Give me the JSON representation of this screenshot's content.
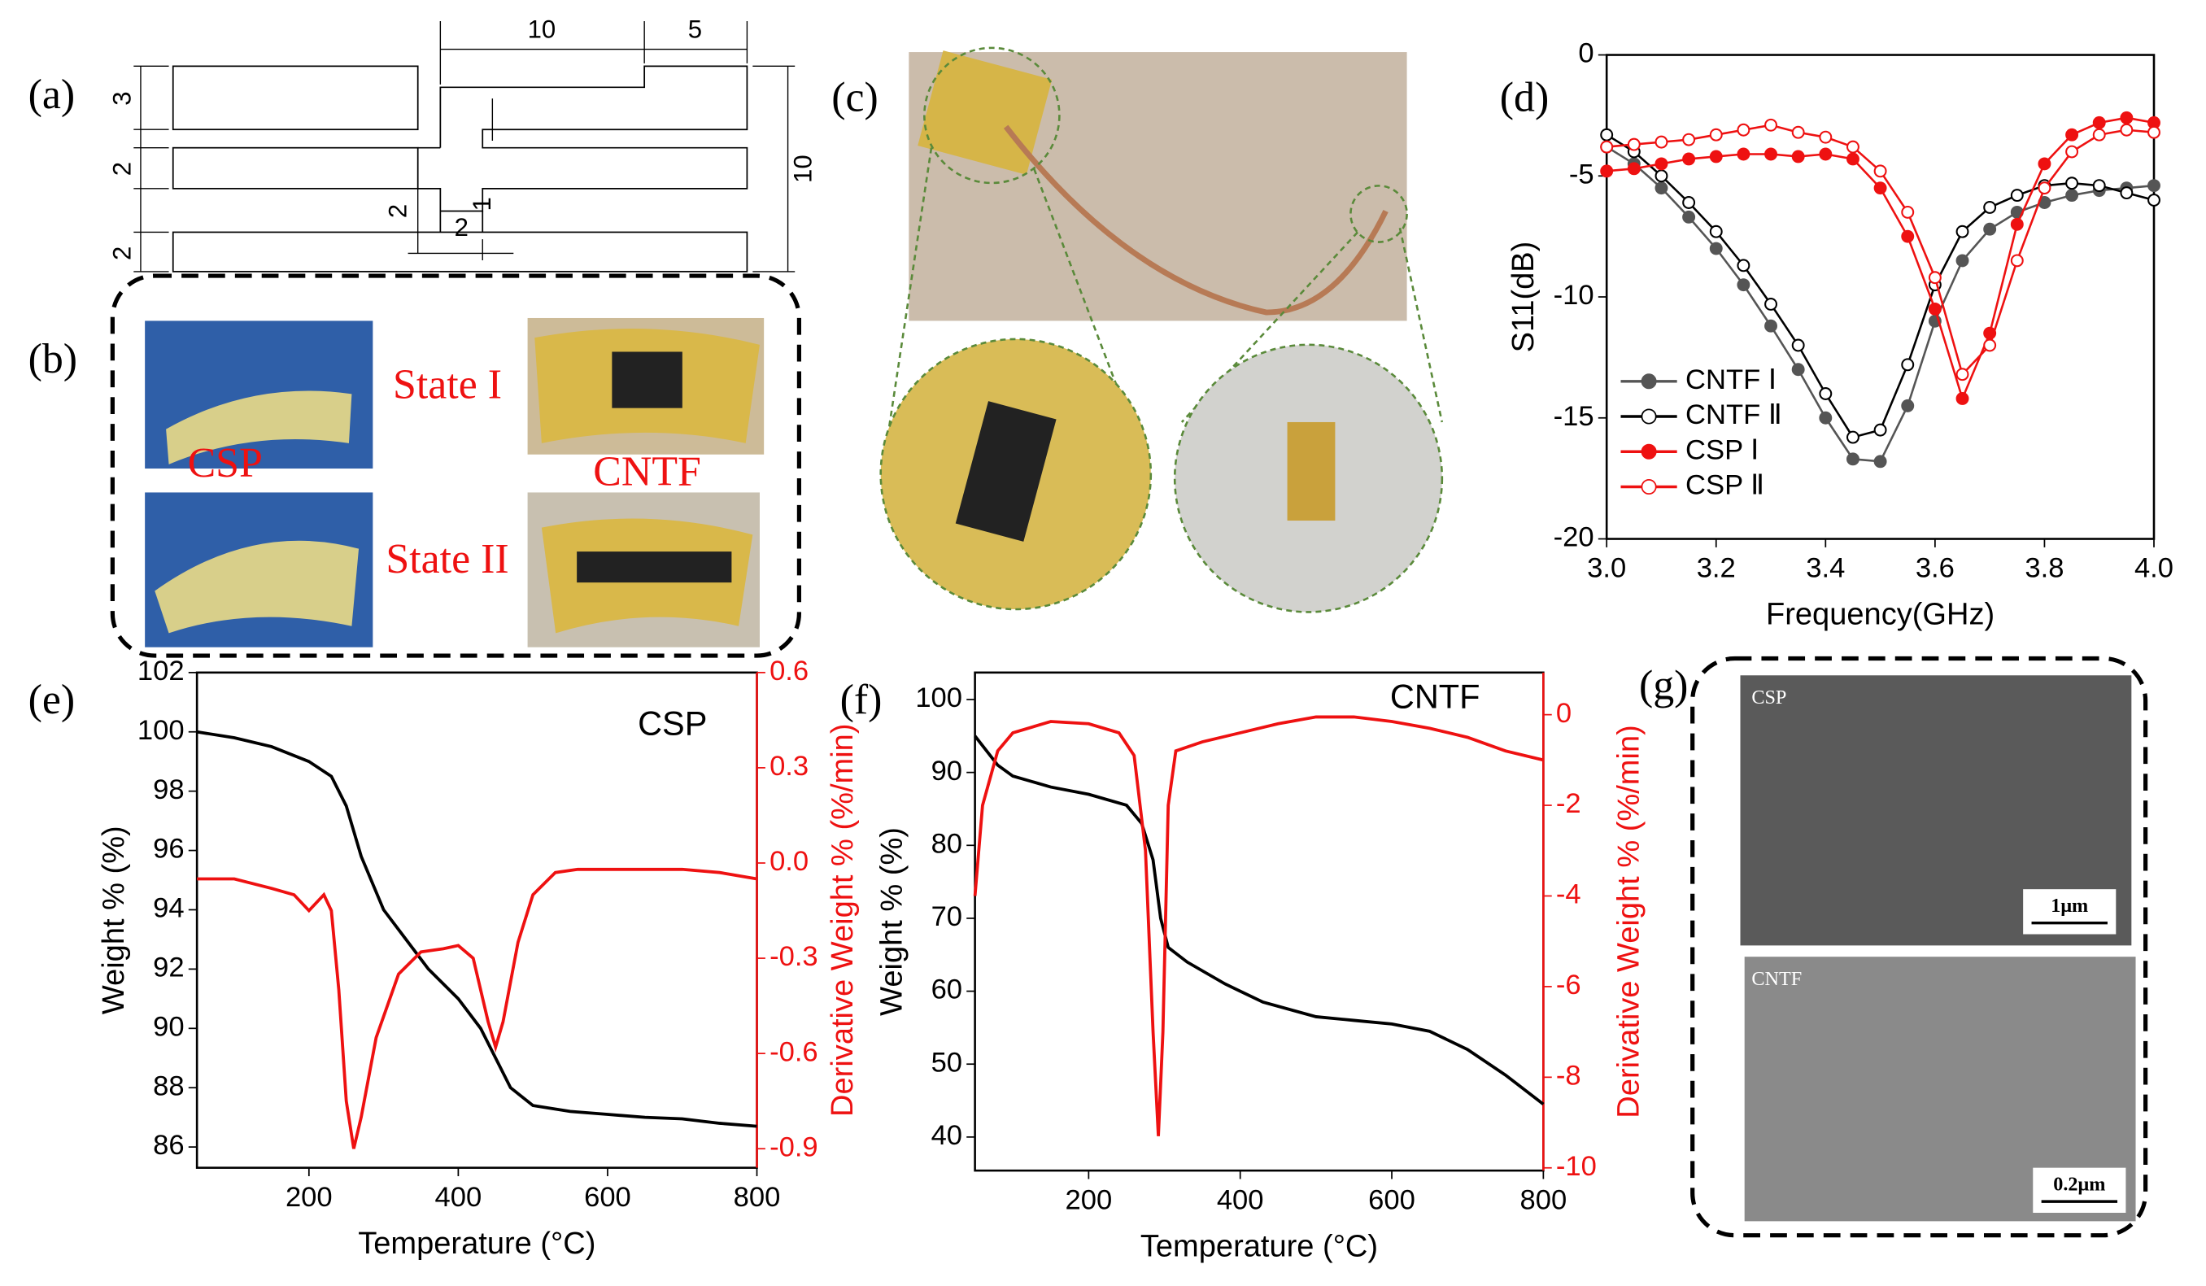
{
  "panel_labels": [
    "(a)",
    "(b)",
    "(c)",
    "(d)",
    "(e)",
    "(f)",
    "(g)"
  ],
  "diagram_a": {
    "dimension_labels": [
      "10",
      "5",
      "3",
      "2",
      "2",
      "2",
      "1",
      "2",
      "10"
    ]
  },
  "panel_b": {
    "labels": [
      "CSP",
      "State I",
      "CNTF",
      "State II"
    ]
  },
  "panel_g": {
    "labels": [
      "CSP",
      "1μm",
      "CNTF",
      "0.2μm"
    ]
  },
  "chart_data": [
    {
      "type": "line",
      "xlabel": "Frequency(GHz)",
      "ylabel": "S11(dB)",
      "legend": "lower left",
      "xlim": [
        3,
        4
      ],
      "xticks": [
        {
          "value": 3,
          "label": "3.0"
        },
        {
          "value": 3.2,
          "label": "3.2"
        },
        {
          "value": 3.4,
          "label": "3.4"
        },
        {
          "value": 3.6,
          "label": "3.6"
        },
        {
          "value": 3.8,
          "label": "3.8"
        },
        {
          "value": 4,
          "label": "4.0"
        }
      ],
      "ylim": [
        -20,
        0
      ],
      "yticks": [
        0,
        -5,
        -10,
        -15,
        -20
      ],
      "x": [
        3.0,
        3.05,
        3.1,
        3.15,
        3.2,
        3.25,
        3.3,
        3.35,
        3.4,
        3.45,
        3.5,
        3.55,
        3.6,
        3.65,
        3.7,
        3.75,
        3.8,
        3.85,
        3.9,
        3.95,
        4.0
      ],
      "series": [
        {
          "name": "CNTF Ⅰ",
          "color": "#555555",
          "marker": "filled",
          "values": [
            -3.8,
            -4.5,
            -5.5,
            -6.7,
            -8,
            -9.5,
            -11.2,
            -13,
            -15,
            -16.7,
            -16.8,
            -14.5,
            -11,
            -8.5,
            -7.2,
            -6.5,
            -6.1,
            -5.8,
            -5.6,
            -5.5,
            -5.4
          ]
        },
        {
          "name": "CNTF Ⅱ",
          "color": "#000000",
          "marker": "open",
          "values": [
            -3.3,
            -4,
            -5,
            -6.1,
            -7.3,
            -8.7,
            -10.3,
            -12,
            -14,
            -15.8,
            -15.5,
            -12.8,
            -9.5,
            -7.3,
            -6.3,
            -5.8,
            -5.4,
            -5.3,
            -5.4,
            -5.7,
            -6
          ]
        },
        {
          "name": "CSP Ⅰ",
          "color": "#ee1111",
          "marker": "filled",
          "values": [
            -4.8,
            -4.7,
            -4.5,
            -4.3,
            -4.2,
            -4.1,
            -4.1,
            -4.2,
            -4.1,
            -4.3,
            -5.5,
            -7.5,
            -10.5,
            -14.2,
            -11.5,
            -7,
            -4.5,
            -3.3,
            -2.8,
            -2.6,
            -2.8
          ]
        },
        {
          "name": "CSP Ⅱ",
          "color": "#ee1111",
          "marker": "open",
          "values": [
            -3.8,
            -3.7,
            -3.6,
            -3.5,
            -3.3,
            -3.1,
            -2.9,
            -3.2,
            -3.4,
            -3.8,
            -4.8,
            -6.5,
            -9.2,
            -13.2,
            -12,
            -8.5,
            -5.5,
            -4,
            -3.3,
            -3.1,
            -3.2
          ]
        }
      ]
    },
    {
      "type": "line",
      "xlabel": "Temperature (°C)",
      "ylabel": "Weight % (%)",
      "y2label": "Derivative Weight % (%/min)",
      "annotation": "CSP",
      "xlim": [
        50,
        800
      ],
      "xticks": [
        200,
        400,
        600,
        800
      ],
      "ylim": [
        85.3,
        102
      ],
      "yticks": [
        86,
        88,
        90,
        92,
        94,
        96,
        98,
        100,
        102
      ],
      "y2lim": [
        -0.96,
        0.6
      ],
      "y2ticks": [
        {
          "value": 0.6,
          "label": "0.6"
        },
        {
          "value": 0.3,
          "label": "0.3"
        },
        {
          "value": 0,
          "label": "0.0"
        },
        -0.3,
        -0.6,
        -0.9
      ],
      "series": [
        {
          "name": "Weight",
          "color": "#000000",
          "x": [
            50,
            100,
            150,
            200,
            230,
            250,
            270,
            300,
            330,
            360,
            400,
            430,
            450,
            470,
            500,
            550,
            600,
            650,
            700,
            750,
            800
          ],
          "values": [
            100,
            99.8,
            99.5,
            99,
            98.5,
            97.5,
            95.8,
            94,
            93,
            92,
            91,
            90,
            89,
            88,
            87.4,
            87.2,
            87.1,
            87,
            86.95,
            86.8,
            86.7
          ]
        },
        {
          "name": "Derivative",
          "color": "#ee1111",
          "axis": "y2",
          "x": [
            50,
            100,
            150,
            180,
            200,
            220,
            230,
            240,
            250,
            260,
            270,
            290,
            320,
            350,
            380,
            400,
            420,
            440,
            450,
            460,
            480,
            500,
            530,
            560,
            600,
            700,
            750,
            800
          ],
          "values": [
            -0.05,
            -0.05,
            -0.08,
            -0.1,
            -0.15,
            -0.1,
            -0.15,
            -0.4,
            -0.75,
            -0.9,
            -0.8,
            -0.55,
            -0.35,
            -0.28,
            -0.27,
            -0.26,
            -0.3,
            -0.5,
            -0.58,
            -0.5,
            -0.25,
            -0.1,
            -0.03,
            -0.02,
            -0.02,
            -0.02,
            -0.03,
            -0.05
          ]
        }
      ]
    },
    {
      "type": "line",
      "xlabel": "Temperature (°C)",
      "ylabel": "Weight % (%)",
      "y2label": "Derivative Weight % (%/min)",
      "annotation": "CNTF",
      "xlim": [
        50,
        800
      ],
      "xticks": [
        200,
        400,
        600,
        800
      ],
      "ylim": [
        35.4,
        103.7
      ],
      "yticks": [
        40,
        50,
        60,
        70,
        80,
        90,
        100
      ],
      "y2lim": [
        -10.06,
        0.93
      ],
      "y2ticks": [
        0,
        -2,
        -4,
        -6,
        -8,
        -10
      ],
      "series": [
        {
          "name": "Weight",
          "color": "#000000",
          "x": [
            50,
            80,
            100,
            150,
            200,
            250,
            270,
            285,
            295,
            305,
            330,
            380,
            430,
            500,
            550,
            600,
            650,
            700,
            750,
            800
          ],
          "values": [
            95,
            91,
            89.5,
            88,
            87,
            85.5,
            83,
            78,
            70,
            66,
            64,
            61,
            58.5,
            56.5,
            56,
            55.5,
            54.5,
            52,
            48.5,
            44.5
          ]
        },
        {
          "name": "Derivative",
          "color": "#ee1111",
          "axis": "y2",
          "x": [
            50,
            60,
            80,
            100,
            150,
            200,
            240,
            260,
            275,
            285,
            292,
            298,
            305,
            315,
            350,
            400,
            450,
            500,
            550,
            600,
            650,
            700,
            750,
            800
          ],
          "values": [
            -4,
            -2,
            -0.8,
            -0.4,
            -0.15,
            -0.2,
            -0.4,
            -0.9,
            -3,
            -7,
            -9.3,
            -7,
            -2,
            -0.8,
            -0.6,
            -0.4,
            -0.2,
            -0.05,
            -0.05,
            -0.15,
            -0.3,
            -0.5,
            -0.8,
            -1.0
          ]
        }
      ]
    }
  ]
}
